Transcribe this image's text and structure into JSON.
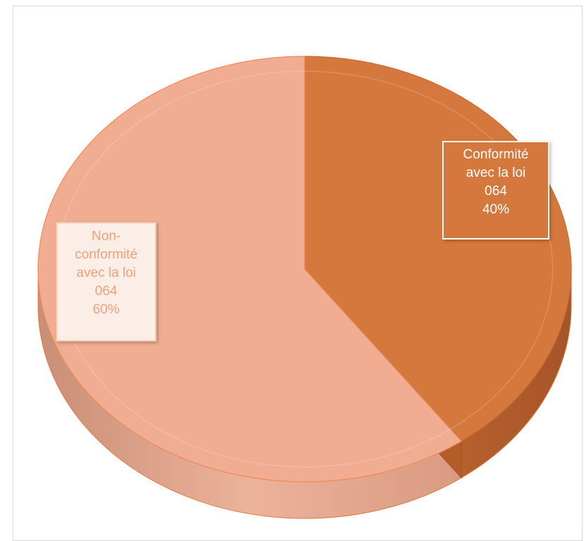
{
  "chart_data": {
    "type": "pie",
    "title": "",
    "slices": [
      {
        "label": "Conformité avec la loi 064",
        "value": 40,
        "percent_label": "40%",
        "color": "#d4783d"
      },
      {
        "label": "Non-conformité avec la loi 064",
        "value": 60,
        "percent_label": "60%",
        "color": "#f0ad92"
      }
    ],
    "labels": {
      "conformite": {
        "line1": "Conformité",
        "line2": "avec la loi",
        "line3": "064",
        "line4": "40%"
      },
      "non_conformite": {
        "line1": "Non-",
        "line2": "conformité",
        "line3": "avec la loi",
        "line4": "064",
        "line5": "60%"
      }
    },
    "legend": "none",
    "style": "3d-pie"
  }
}
